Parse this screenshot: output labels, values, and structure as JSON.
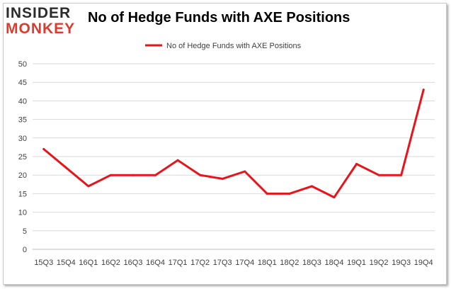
{
  "logo": {
    "line1": "INSIDER",
    "line2": "MONKEY"
  },
  "chart_data": {
    "type": "line",
    "title": "No of Hedge Funds with AXE Positions",
    "categories": [
      "15Q3",
      "15Q4",
      "16Q1",
      "16Q2",
      "16Q3",
      "16Q4",
      "17Q1",
      "17Q2",
      "17Q3",
      "17Q4",
      "18Q1",
      "18Q2",
      "18Q3",
      "18Q4",
      "19Q1",
      "19Q2",
      "19Q3",
      "19Q4"
    ],
    "series": [
      {
        "name": "No of Hedge Funds with AXE Positions",
        "values": [
          27,
          22,
          17,
          20,
          20,
          20,
          24,
          20,
          19,
          21,
          15,
          15,
          17,
          14,
          23,
          20,
          20,
          43
        ]
      }
    ],
    "ylim": [
      0,
      50
    ],
    "yticks": [
      0,
      5,
      10,
      15,
      20,
      25,
      30,
      35,
      40,
      45,
      50
    ],
    "xlabel": "",
    "ylabel": "",
    "grid": true,
    "legend": "top-center",
    "colors": {
      "series": "#e8141a",
      "grid": "#d9d9d9",
      "axis_text": "#404040"
    }
  }
}
